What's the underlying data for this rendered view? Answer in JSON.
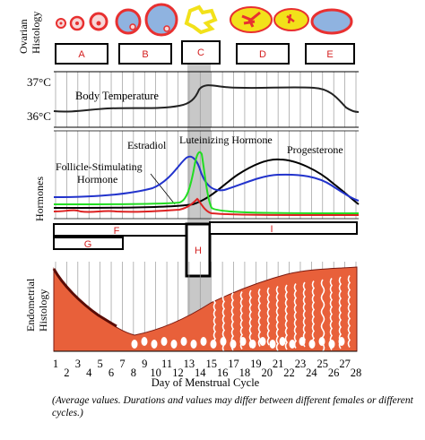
{
  "labels": {
    "ovarian_histology": [
      "Ovarian",
      "Histology"
    ],
    "hormones": "Hormones",
    "endometrial_histology": [
      "Endometrial",
      "Histology"
    ],
    "body_temperature": "Body Temperature",
    "temp_37": "37°C",
    "temp_36": "36°C",
    "estradiol": "Estradiol",
    "luteinizing_hormone": "Luteinizing  Hormone",
    "progesterone": "Progesterone",
    "fsh_line1": "Follicle-Stimulating",
    "fsh_line2": "Hormone",
    "x_axis_title": "Day of Menstrual Cycle",
    "caption": "(Average values. Durations and values may differ between different females or different cycles.)"
  },
  "phase_boxes": [
    "A",
    "B",
    "C",
    "D",
    "E"
  ],
  "phase_bars": [
    "F",
    "G",
    "H",
    "I"
  ],
  "days": [
    1,
    2,
    3,
    4,
    5,
    6,
    7,
    8,
    9,
    10,
    11,
    12,
    13,
    14,
    15,
    16,
    17,
    18,
    19,
    20,
    21,
    22,
    23,
    24,
    25,
    26,
    27,
    28
  ],
  "colors": {
    "estradiol": "#2233cc",
    "lh": "#22dd22",
    "fsh": "#dd2222",
    "progesterone": "#000000",
    "endometrium": "#e8603a",
    "label_red": "#d42020",
    "ovulation_band": "#c8c8c8",
    "follicle_yellow": "#f2e11a",
    "follicle_blue": "#8fb3e0",
    "follicle_red": "#e83030"
  }
}
